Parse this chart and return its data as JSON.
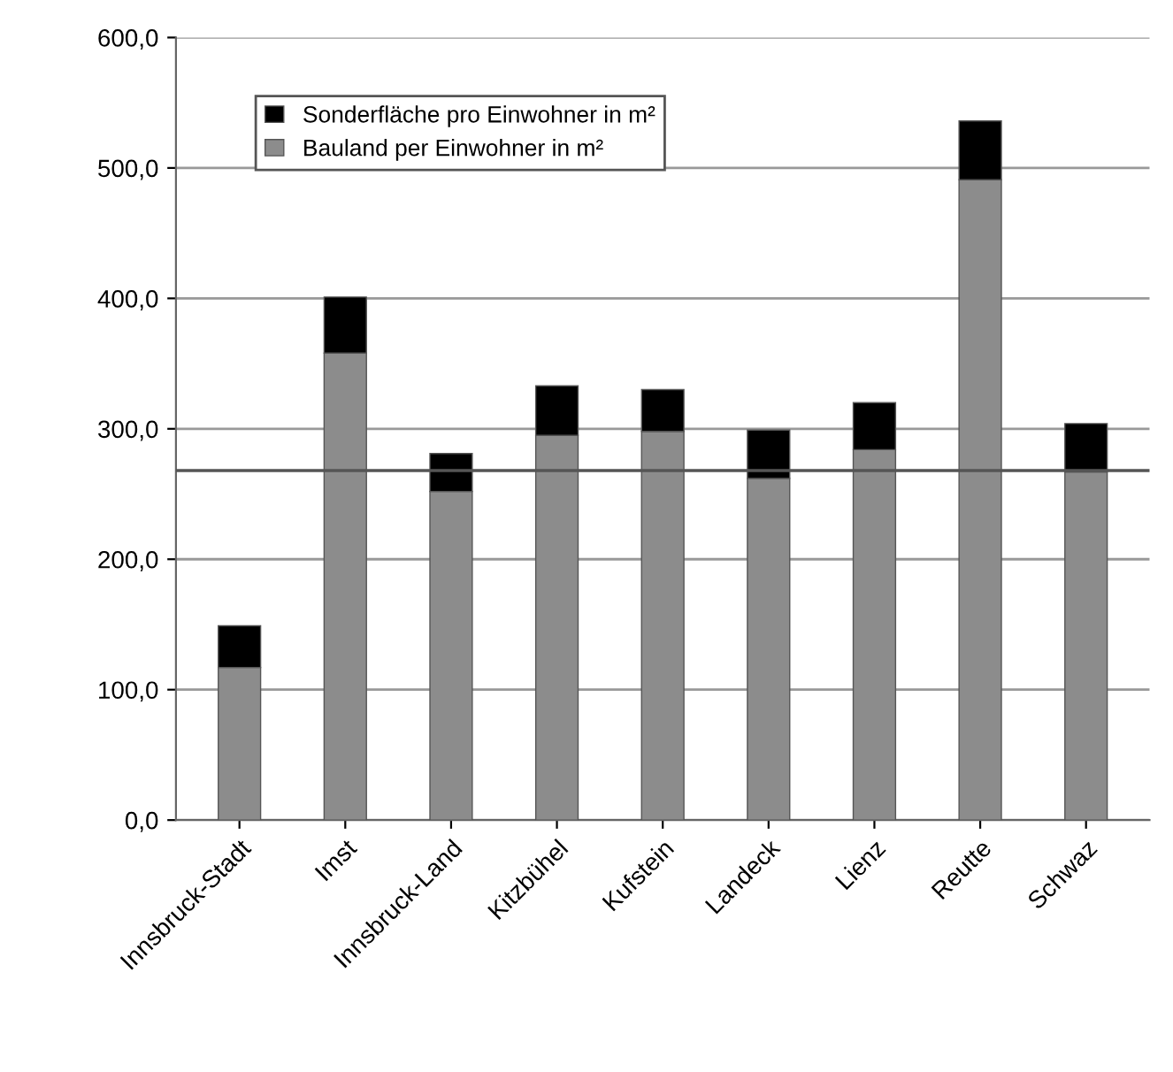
{
  "chart_data": {
    "type": "bar",
    "stacked": true,
    "categories": [
      "Innsbruck-Stadt",
      "Imst",
      "Innsbruck-Land",
      "Kitzbühel",
      "Kufstein",
      "Landeck",
      "Lienz",
      "Reutte",
      "Schwaz"
    ],
    "series": [
      {
        "name": "Bauland per Einwohner in m²",
        "color": "#8c8c8c",
        "values": [
          117,
          358,
          252,
          295,
          298,
          262,
          284,
          491,
          267
        ]
      },
      {
        "name": "Sonderfläche pro Einwohner in m²",
        "color": "#000000",
        "values": [
          32,
          43,
          29,
          38,
          32,
          37,
          36,
          45,
          37
        ]
      }
    ],
    "ylim": [
      0,
      600
    ],
    "yticks": [
      {
        "value": 0,
        "label": "0,0"
      },
      {
        "value": 100,
        "label": "100,0"
      },
      {
        "value": 200,
        "label": "200,0"
      },
      {
        "value": 300,
        "label": "300,0"
      },
      {
        "value": 400,
        "label": "400,0"
      },
      {
        "value": 500,
        "label": "500,0"
      },
      {
        "value": 600,
        "label": "600,0"
      }
    ],
    "grid": "y",
    "legend": "top left",
    "ref_lines": [
      {
        "axis": "y",
        "value": 268,
        "color": "#555555"
      }
    ]
  }
}
